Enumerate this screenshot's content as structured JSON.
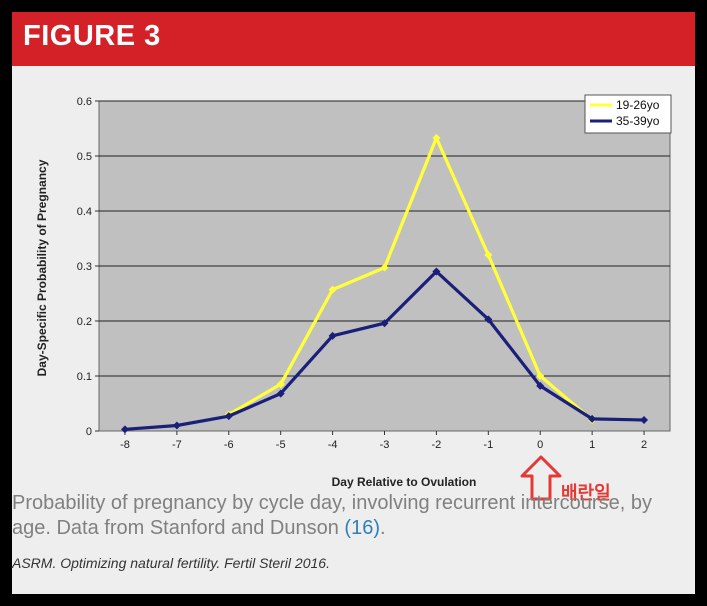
{
  "header": {
    "title": "FIGURE 3"
  },
  "annotation": {
    "text": "배란일",
    "color": "#e53935"
  },
  "caption": {
    "text": "Probability of pregnancy by cycle day, involving recurrent intercourse, by age. Data from Stanford and Dunson ",
    "ref_text": "(16)",
    "end": "."
  },
  "citation": "ASRM. Optimizing natural fertility. Fertil Steril 2016.",
  "chart_data": {
    "type": "line",
    "title": "",
    "xlabel": "Day Relative to Ovulation",
    "ylabel": "Day-Specific Probability of Pregnancy",
    "x": [
      -8,
      -7,
      -6,
      -5,
      -4,
      -3,
      -2,
      -1,
      0,
      1,
      2
    ],
    "x_tick_labels": [
      "-8",
      "-7",
      "-6",
      "-5",
      "-4",
      "-3",
      "-2",
      "-1",
      "0",
      "1",
      "2"
    ],
    "y_tick_labels": [
      "0",
      "0.1",
      "0.2",
      "0.3",
      "0.4",
      "0.5",
      "0.6"
    ],
    "ylim": [
      0,
      0.6
    ],
    "grid": true,
    "legend_position": "top-right",
    "series": [
      {
        "name": "19-26yo",
        "color": "#ffff3c",
        "x": [
          -6,
          -5,
          -4,
          -3,
          -2,
          -1,
          0,
          1
        ],
        "values": [
          0.03,
          0.085,
          0.257,
          0.297,
          0.533,
          0.32,
          0.1,
          0.02
        ]
      },
      {
        "name": "35-39yo",
        "color": "#1a1f7a",
        "x": [
          -8,
          -7,
          -6,
          -5,
          -4,
          -3,
          -2,
          -1,
          0,
          1,
          2
        ],
        "values": [
          0.003,
          0.01,
          0.027,
          0.068,
          0.173,
          0.196,
          0.29,
          0.203,
          0.082,
          0.022,
          0.02
        ]
      }
    ]
  }
}
